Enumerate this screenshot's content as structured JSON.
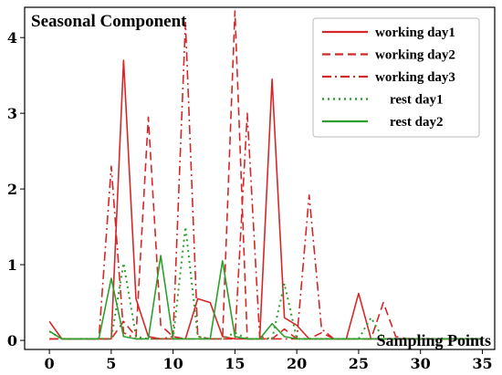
{
  "chart_data": {
    "type": "line",
    "title": "Seasonal Component",
    "xlabel": "Sampling Points",
    "ylabel": "",
    "xlim": [
      -2,
      36
    ],
    "ylim": [
      -0.12,
      4.4
    ],
    "xticks": [
      0,
      5,
      10,
      15,
      20,
      25,
      30,
      35
    ],
    "yticks": [
      0,
      1,
      2,
      3,
      4
    ],
    "legend_position": "top-right",
    "x": [
      0,
      1,
      2,
      3,
      4,
      5,
      6,
      7,
      8,
      9,
      10,
      11,
      12,
      13,
      14,
      15,
      16,
      17,
      18,
      19,
      20,
      21,
      22,
      23,
      24,
      25,
      26,
      27,
      28,
      29,
      30,
      31,
      32,
      33,
      34,
      35
    ],
    "series": [
      {
        "name": "working day1",
        "color": "#d62728",
        "dash": "solid",
        "values": [
          0.25,
          0.02,
          0.02,
          0.02,
          0.02,
          0.02,
          3.7,
          0.55,
          0.05,
          0.02,
          0.02,
          0.02,
          0.55,
          0.5,
          0.05,
          0.02,
          0.02,
          0.02,
          3.45,
          0.3,
          0.2,
          0.02,
          0.02,
          0.02,
          0.02,
          0.62,
          0.02,
          0.02,
          0.02,
          0.02,
          0.02,
          0.02,
          0.02,
          0.02,
          0.02,
          0.02
        ]
      },
      {
        "name": "working day2",
        "color": "#d62728",
        "dash": "dashed",
        "values": [
          0.02,
          0.02,
          0.02,
          0.02,
          0.02,
          0.02,
          0.25,
          0.05,
          2.95,
          0.2,
          0.05,
          0.02,
          0.02,
          0.02,
          0.02,
          4.35,
          0.02,
          0.02,
          0.02,
          0.15,
          0.02,
          0.02,
          0.1,
          0.02,
          0.02,
          0.02,
          0.02,
          0.5,
          0.05,
          0.02,
          0.02,
          0.02,
          0.02,
          0.02,
          0.02,
          0.02
        ]
      },
      {
        "name": "working day3",
        "color": "#d62728",
        "dash": "dashdot",
        "values": [
          0.02,
          0.02,
          0.02,
          0.02,
          0.02,
          2.3,
          0.1,
          0.02,
          0.02,
          0.02,
          0.05,
          4.2,
          0.05,
          0.02,
          0.02,
          0.02,
          3.0,
          0.05,
          0.02,
          0.02,
          0.02,
          1.92,
          0.15,
          0.02,
          0.02,
          0.02,
          0.02,
          0.02,
          0.02,
          0.02,
          0.02,
          0.02,
          0.02,
          0.02,
          0.02,
          0.02
        ]
      },
      {
        "name": "rest day1",
        "color": "#2ca02c",
        "dash": "dotted",
        "values": [
          0.12,
          0.02,
          0.02,
          0.02,
          0.02,
          0.02,
          1.02,
          0.05,
          0.02,
          0.02,
          0.02,
          1.5,
          0.05,
          0.02,
          0.02,
          0.1,
          0.02,
          0.02,
          0.02,
          0.75,
          0.02,
          0.02,
          0.02,
          0.02,
          0.02,
          0.02,
          0.3,
          0.02,
          0.02,
          0.02,
          0.02,
          0.02,
          0.02,
          0.02,
          0.02,
          0.02
        ]
      },
      {
        "name": "rest day2",
        "color": "#2ca02c",
        "dash": "solid",
        "values": [
          0.12,
          0.02,
          0.02,
          0.02,
          0.02,
          0.82,
          0.05,
          0.02,
          0.02,
          1.12,
          0.02,
          0.02,
          0.02,
          0.02,
          1.05,
          0.05,
          0.02,
          0.02,
          0.22,
          0.05,
          0.02,
          0.02,
          0.02,
          0.02,
          0.02,
          0.02,
          0.02,
          0.02,
          0.02,
          0.02,
          0.02,
          0.02,
          0.02,
          0.02,
          0.02,
          0.02
        ]
      }
    ]
  }
}
